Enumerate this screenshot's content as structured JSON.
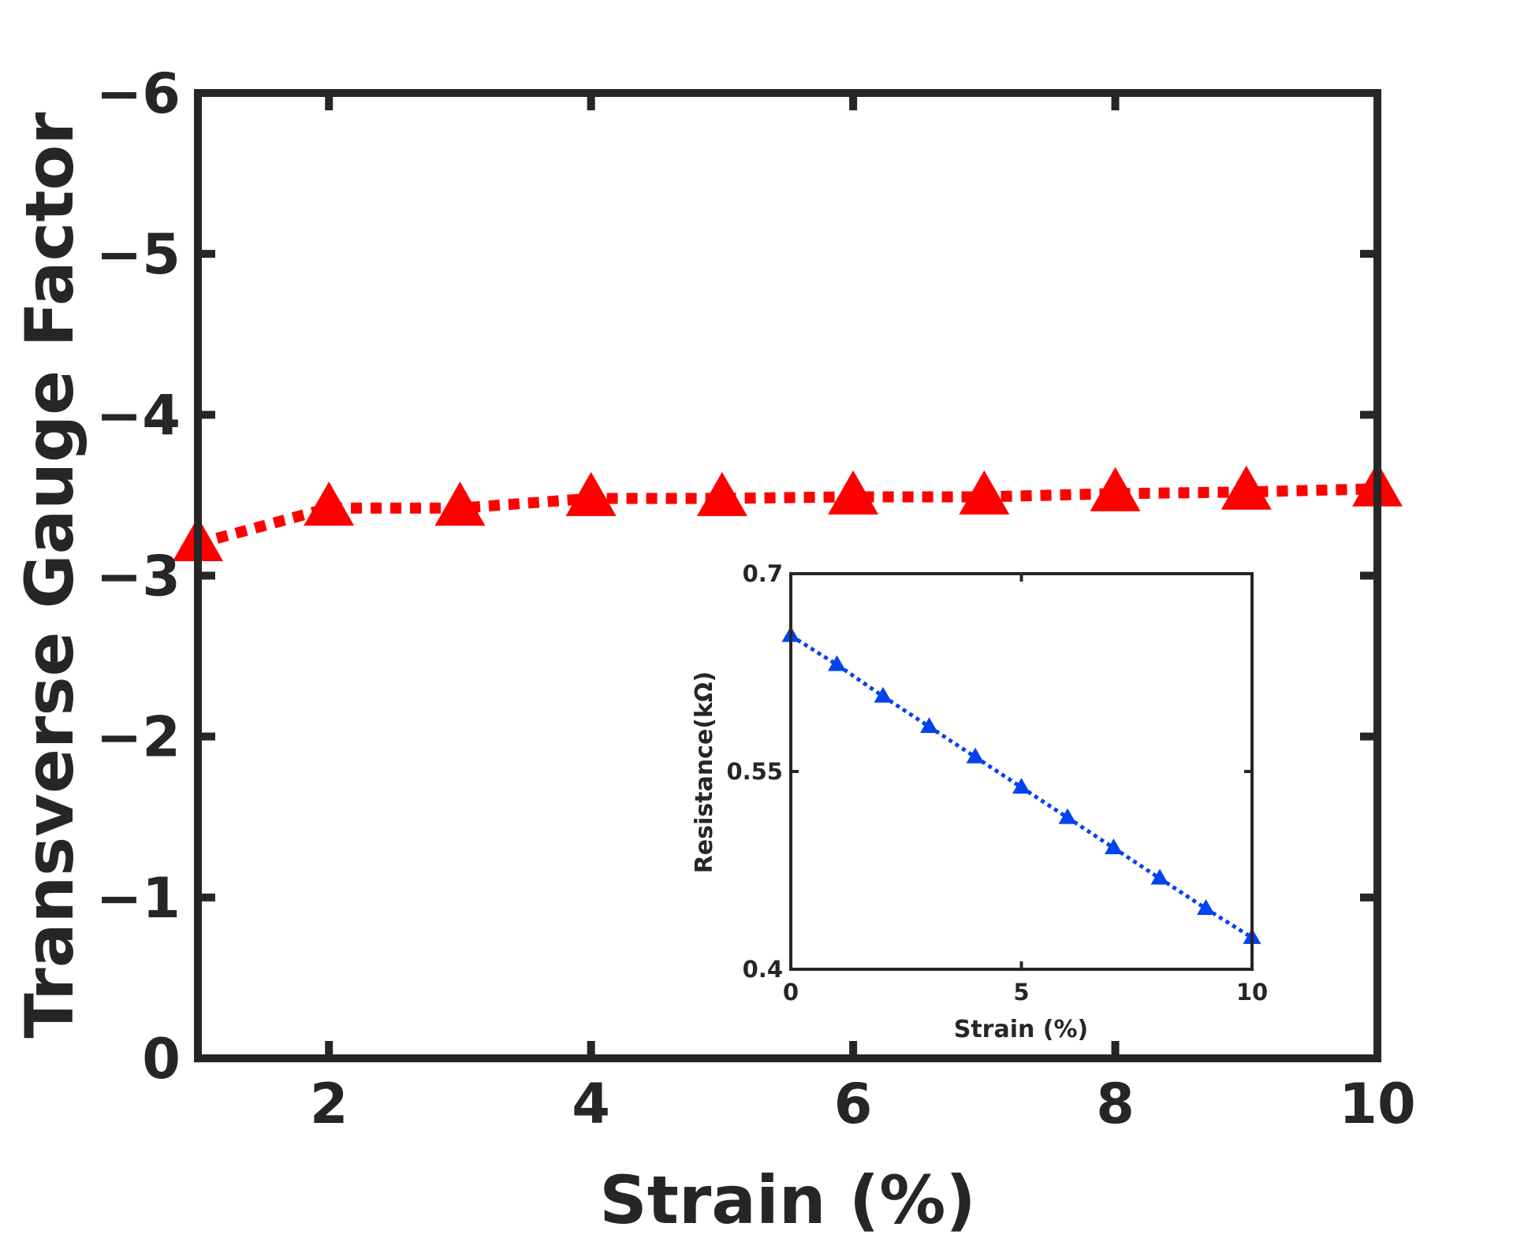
{
  "colors": {
    "axis": "#262626",
    "main_series": "#ff0000",
    "inset_series": "#0044ee",
    "background": "#ffffff"
  },
  "chart_data": [
    {
      "id": "main",
      "type": "line",
      "title": "",
      "xlabel": "Strain (%)",
      "ylabel": "Transverse Gauge Factor",
      "xlim": [
        1,
        10
      ],
      "ylim": [
        0,
        -6
      ],
      "y_direction": "reversed",
      "grid": false,
      "legend": "none",
      "xticks": [
        2,
        4,
        6,
        8,
        10
      ],
      "xtick_labels": [
        "2",
        "4",
        "6",
        "8",
        "10"
      ],
      "yticks": [
        0,
        -1,
        -2,
        -3,
        -4,
        -5,
        -6
      ],
      "ytick_labels": [
        "0",
        "−1",
        "−2",
        "−3",
        "−4",
        "−5",
        "−6"
      ],
      "series": [
        {
          "name": "Transverse Gauge Factor",
          "marker": "triangle",
          "line_style": "dotted",
          "x": [
            1,
            2,
            3,
            4,
            5,
            6,
            7,
            8,
            9,
            10
          ],
          "y": [
            -3.2,
            -3.42,
            -3.42,
            -3.48,
            -3.48,
            -3.49,
            -3.49,
            -3.51,
            -3.52,
            -3.54
          ]
        }
      ]
    },
    {
      "id": "inset",
      "type": "line",
      "title": "",
      "xlabel": "Strain (%)",
      "ylabel": "Resistance(kΩ)",
      "xlim": [
        0,
        10
      ],
      "ylim": [
        0.4,
        0.7
      ],
      "grid": false,
      "legend": "none",
      "xticks": [
        0,
        5,
        10
      ],
      "xtick_labels": [
        "0",
        "5",
        "10"
      ],
      "yticks": [
        0.4,
        0.55,
        0.7
      ],
      "ytick_labels": [
        "0.4",
        "0.55",
        "0.7"
      ],
      "series": [
        {
          "name": "Resistance",
          "marker": "triangle",
          "line_style": "dotted",
          "x": [
            0,
            1,
            2,
            3,
            4,
            5,
            6,
            7,
            8,
            9,
            10
          ],
          "y": [
            0.653,
            0.631,
            0.607,
            0.584,
            0.561,
            0.538,
            0.515,
            0.492,
            0.469,
            0.446,
            0.424
          ]
        }
      ]
    }
  ]
}
